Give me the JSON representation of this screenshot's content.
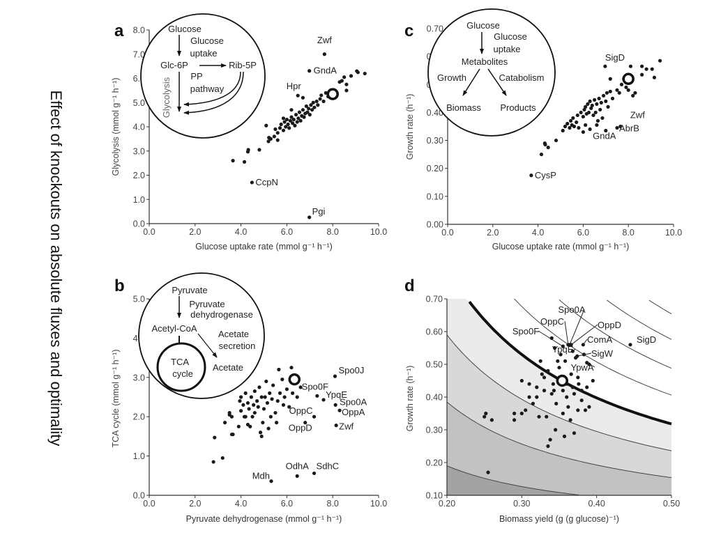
{
  "figure_title": "Effect of knockouts on absolute fluxes and optimality",
  "colors": {
    "points": "#1a1a1a",
    "axis": "#333333",
    "tick_labels": "#444444",
    "inset_stroke": "#111111"
  },
  "chart_data": [
    {
      "panel": "a",
      "type": "scatter",
      "xlabel": "Glucose uptake rate (mmol g⁻¹ h⁻¹)",
      "ylabel": "Glycolysis (mmol g⁻¹ h⁻¹)",
      "xlim": [
        0,
        10
      ],
      "ylim": [
        0,
        8
      ],
      "xticks": [
        "0.0",
        "2.0",
        "4.0",
        "6.0",
        "8.0",
        "10.0"
      ],
      "yticks": [
        "0.0",
        "1.0",
        "2.0",
        "3.0",
        "4.0",
        "5.0",
        "6.0",
        "7.0",
        "8.0"
      ],
      "wild_type": [
        8.0,
        5.35
      ],
      "labeled_points": [
        {
          "label": "Zwf",
          "x": 7.64,
          "y": 7.0
        },
        {
          "label": "GndA",
          "x": 6.98,
          "y": 6.31
        },
        {
          "label": "Hpr",
          "x": 6.48,
          "y": 5.29
        },
        {
          "label": "CcpN",
          "x": 4.48,
          "y": 1.7
        },
        {
          "label": "Pgi",
          "x": 6.98,
          "y": 0.26
        }
      ],
      "points": [
        [
          3.65,
          2.6
        ],
        [
          4.15,
          2.55
        ],
        [
          4.3,
          2.97
        ],
        [
          4.32,
          3.05
        ],
        [
          4.8,
          3.05
        ],
        [
          5.1,
          4.05
        ],
        [
          5.2,
          3.4
        ],
        [
          5.22,
          3.55
        ],
        [
          5.3,
          3.5
        ],
        [
          5.45,
          3.6
        ],
        [
          5.5,
          3.9
        ],
        [
          5.6,
          3.45
        ],
        [
          5.6,
          3.75
        ],
        [
          5.7,
          3.95
        ],
        [
          5.75,
          4.1
        ],
        [
          5.85,
          3.85
        ],
        [
          5.9,
          4.2
        ],
        [
          5.95,
          4.0
        ],
        [
          6.0,
          4.3
        ],
        [
          6.05,
          4.1
        ],
        [
          6.1,
          3.95
        ],
        [
          6.15,
          4.25
        ],
        [
          6.2,
          4.4
        ],
        [
          6.25,
          4.15
        ],
        [
          6.3,
          4.3
        ],
        [
          6.35,
          4.05
        ],
        [
          6.4,
          4.5
        ],
        [
          6.45,
          4.2
        ],
        [
          6.5,
          4.35
        ],
        [
          6.55,
          4.6
        ],
        [
          6.6,
          4.25
        ],
        [
          6.65,
          4.45
        ],
        [
          6.7,
          4.7
        ],
        [
          6.75,
          4.4
        ],
        [
          6.8,
          4.55
        ],
        [
          6.85,
          4.85
        ],
        [
          6.9,
          4.6
        ],
        [
          6.95,
          4.75
        ],
        [
          7.0,
          4.5
        ],
        [
          7.05,
          4.9
        ],
        [
          7.1,
          4.7
        ],
        [
          7.15,
          5.0
        ],
        [
          7.2,
          4.8
        ],
        [
          7.3,
          5.05
        ],
        [
          7.35,
          4.9
        ],
        [
          7.45,
          5.15
        ],
        [
          7.5,
          5.3
        ],
        [
          7.6,
          5.05
        ],
        [
          7.7,
          5.4
        ],
        [
          7.8,
          5.25
        ],
        [
          7.9,
          5.5
        ],
        [
          8.3,
          5.85
        ],
        [
          8.4,
          5.9
        ],
        [
          8.6,
          5.75
        ],
        [
          8.6,
          5.5
        ],
        [
          8.5,
          6.05
        ],
        [
          8.8,
          6.1
        ],
        [
          9.05,
          6.3
        ],
        [
          9.1,
          6.25
        ],
        [
          9.4,
          6.2
        ],
        [
          6.7,
          5.2
        ],
        [
          6.2,
          4.7
        ],
        [
          5.85,
          4.35
        ]
      ],
      "inset": [
        "Glucose",
        "Glucose",
        "uptake",
        "Glc-6P",
        "Rib-5P",
        "PP",
        "pathway",
        "Glycolysis"
      ]
    },
    {
      "panel": "c",
      "type": "scatter",
      "xlabel": "Glucose uptake rate (mmol g⁻¹ h⁻¹)",
      "ylabel": "Growth rate (h⁻¹)",
      "xlim": [
        0,
        10
      ],
      "ylim": [
        0,
        0.7
      ],
      "xticks": [
        "0.0",
        "2.0",
        "4.0",
        "6.0",
        "8.0",
        "10.0"
      ],
      "yticks": [
        "0.00",
        "0.10",
        "0.20",
        "0.30",
        "0.40",
        "0.50",
        "0.60",
        "0.70"
      ],
      "wild_type": [
        8.0,
        0.52
      ],
      "labeled_points": [
        {
          "label": "SigD",
          "x": 6.97,
          "y": 0.565
        },
        {
          "label": "Zwf",
          "x": 7.65,
          "y": 0.35
        },
        {
          "label": "AbrB",
          "x": 7.5,
          "y": 0.345
        },
        {
          "label": "GndA",
          "x": 7.0,
          "y": 0.335
        },
        {
          "label": "CysP",
          "x": 3.7,
          "y": 0.175
        }
      ],
      "points": [
        [
          4.15,
          0.25
        ],
        [
          4.3,
          0.29
        ],
        [
          4.32,
          0.285
        ],
        [
          4.45,
          0.275
        ],
        [
          4.8,
          0.3
        ],
        [
          5.1,
          0.335
        ],
        [
          5.2,
          0.35
        ],
        [
          5.3,
          0.36
        ],
        [
          5.4,
          0.345
        ],
        [
          5.45,
          0.37
        ],
        [
          5.5,
          0.355
        ],
        [
          5.55,
          0.38
        ],
        [
          5.6,
          0.35
        ],
        [
          5.7,
          0.365
        ],
        [
          5.75,
          0.39
        ],
        [
          5.8,
          0.345
        ],
        [
          5.9,
          0.4
        ],
        [
          6.0,
          0.385
        ],
        [
          6.05,
          0.41
        ],
        [
          6.1,
          0.42
        ],
        [
          6.15,
          0.395
        ],
        [
          6.2,
          0.43
        ],
        [
          6.25,
          0.4
        ],
        [
          6.3,
          0.44
        ],
        [
          6.35,
          0.415
        ],
        [
          6.4,
          0.425
        ],
        [
          6.45,
          0.39
        ],
        [
          6.5,
          0.445
        ],
        [
          6.55,
          0.4
        ],
        [
          6.6,
          0.43
        ],
        [
          6.65,
          0.37
        ],
        [
          6.7,
          0.45
        ],
        [
          6.75,
          0.41
        ],
        [
          6.8,
          0.435
        ],
        [
          6.85,
          0.38
        ],
        [
          6.9,
          0.46
        ],
        [
          7.0,
          0.44
        ],
        [
          7.05,
          0.47
        ],
        [
          7.1,
          0.42
        ],
        [
          7.2,
          0.475
        ],
        [
          7.3,
          0.45
        ],
        [
          7.5,
          0.48
        ],
        [
          7.6,
          0.47
        ],
        [
          7.7,
          0.5
        ],
        [
          7.8,
          0.52
        ],
        [
          7.9,
          0.49
        ],
        [
          8.0,
          0.48
        ],
        [
          8.2,
          0.46
        ],
        [
          8.3,
          0.47
        ],
        [
          7.2,
          0.52
        ],
        [
          8.1,
          0.565
        ],
        [
          8.6,
          0.565
        ],
        [
          8.8,
          0.555
        ],
        [
          9.05,
          0.555
        ],
        [
          9.4,
          0.585
        ],
        [
          8.6,
          0.535
        ],
        [
          9.15,
          0.525
        ],
        [
          6.3,
          0.34
        ],
        [
          6.1,
          0.355
        ],
        [
          6.6,
          0.355
        ],
        [
          6.0,
          0.33
        ]
      ],
      "inset": [
        "Glucose",
        "Glucose",
        "uptake",
        "Metabolites",
        "Growth",
        "Catabolism",
        "Biomass",
        "Products"
      ]
    },
    {
      "panel": "b",
      "type": "scatter",
      "xlabel": "Pyruvate dehydrogenase (mmol g⁻¹ h⁻¹)",
      "ylabel": "TCA cycle (mmol g⁻¹ h⁻¹)",
      "xlim": [
        0,
        10
      ],
      "ylim": [
        0,
        5
      ],
      "xticks": [
        "0.0",
        "2.0",
        "4.0",
        "6.0",
        "8.0",
        "10.0"
      ],
      "yticks": [
        "0.0",
        "1.0",
        "2.0",
        "3.0",
        "4.0",
        "5.0"
      ],
      "wild_type": [
        6.33,
        2.95
      ],
      "labeled_points": [
        {
          "label": "Spo0J",
          "x": 8.1,
          "y": 3.03
        },
        {
          "label": "Spo0F",
          "x": 7.32,
          "y": 2.53
        },
        {
          "label": "YpqE",
          "x": 7.6,
          "y": 2.43
        },
        {
          "label": "Spo0A",
          "x": 8.12,
          "y": 2.3
        },
        {
          "label": "OppA",
          "x": 8.3,
          "y": 2.16
        },
        {
          "label": "OppC",
          "x": 7.19,
          "y": 2.0
        },
        {
          "label": "OppD",
          "x": 6.8,
          "y": 1.85
        },
        {
          "label": "Zwf",
          "x": 8.15,
          "y": 1.78
        },
        {
          "label": "Mdh",
          "x": 5.32,
          "y": 0.36
        },
        {
          "label": "OdhA",
          "x": 6.45,
          "y": 0.49
        },
        {
          "label": "SdhC",
          "x": 7.19,
          "y": 0.56
        }
      ],
      "points": [
        [
          2.8,
          0.85
        ],
        [
          3.2,
          0.95
        ],
        [
          2.85,
          1.47
        ],
        [
          3.3,
          1.85
        ],
        [
          3.5,
          2.1
        ],
        [
          3.6,
          2.0
        ],
        [
          3.6,
          1.55
        ],
        [
          3.65,
          1.55
        ],
        [
          3.5,
          2.05
        ],
        [
          3.9,
          1.75
        ],
        [
          4.0,
          2.15
        ],
        [
          4.0,
          2.5
        ],
        [
          4.1,
          2.3
        ],
        [
          4.2,
          2.0
        ],
        [
          4.2,
          2.6
        ],
        [
          4.3,
          1.8
        ],
        [
          4.3,
          2.35
        ],
        [
          4.35,
          2.2
        ],
        [
          4.4,
          1.75
        ],
        [
          4.45,
          2.5
        ],
        [
          4.5,
          2.0
        ],
        [
          4.55,
          2.3
        ],
        [
          4.6,
          2.65
        ],
        [
          4.6,
          2.1
        ],
        [
          4.7,
          2.4
        ],
        [
          4.75,
          2.25
        ],
        [
          4.8,
          2.75
        ],
        [
          4.85,
          1.6
        ],
        [
          4.9,
          1.5
        ],
        [
          4.9,
          2.5
        ],
        [
          4.95,
          1.85
        ],
        [
          5.0,
          2.2
        ],
        [
          5.05,
          2.5
        ],
        [
          5.1,
          2.9
        ],
        [
          5.15,
          2.35
        ],
        [
          5.2,
          1.7
        ],
        [
          5.25,
          2.6
        ],
        [
          5.3,
          2.0
        ],
        [
          5.35,
          2.45
        ],
        [
          5.4,
          2.8
        ],
        [
          5.5,
          2.1
        ],
        [
          5.55,
          1.85
        ],
        [
          5.6,
          2.4
        ],
        [
          5.65,
          3.2
        ],
        [
          5.7,
          2.6
        ],
        [
          5.8,
          2.95
        ],
        [
          5.85,
          2.3
        ],
        [
          5.9,
          2.5
        ],
        [
          6.0,
          2.7
        ],
        [
          6.1,
          2.25
        ],
        [
          6.2,
          3.25
        ],
        [
          6.25,
          2.6
        ],
        [
          6.45,
          2.5
        ],
        [
          6.6,
          2.75
        ],
        [
          4.15,
          2.0
        ],
        [
          3.95,
          2.4
        ]
      ],
      "inset": [
        "Pyruvate",
        "Pyruvate",
        "dehydrogenase",
        "Acetyl-CoA",
        "Acetate",
        "secretion",
        "TCA",
        "cycle",
        "Acetate"
      ]
    },
    {
      "panel": "d",
      "type": "scatter",
      "xlabel": "Biomass yield (g (g glucose)⁻¹)",
      "ylabel": "Growth rate (h⁻¹)",
      "xlim": [
        0.2,
        0.5
      ],
      "ylim": [
        0.1,
        0.7
      ],
      "xticks": [
        "0.20",
        "0.30",
        "0.40",
        "0.50"
      ],
      "yticks": [
        "0.10",
        "0.20",
        "0.30",
        "0.40",
        "0.50",
        "0.60",
        "0.70"
      ],
      "wild_type": [
        0.354,
        0.45
      ],
      "contour_levels_growth_x_yield": [
        0.038,
        0.077,
        0.118,
        0.159,
        0.203,
        0.244,
        0.288,
        0.327
      ],
      "highlighted_contour": 0.159,
      "shading_colors": [
        "#a3a3a3",
        "#c2c2c2",
        "#d8d8d8",
        "#ebebeb"
      ],
      "labeled_points": [
        {
          "label": "Spo0A",
          "x": 0.364,
          "y": 0.56
        },
        {
          "label": "OppC",
          "x": 0.362,
          "y": 0.56
        },
        {
          "label": "OppD",
          "x": 0.366,
          "y": 0.56
        },
        {
          "label": "Spo0F",
          "x": 0.355,
          "y": 0.555
        },
        {
          "label": "ComA",
          "x": 0.382,
          "y": 0.56
        },
        {
          "label": "SigD",
          "x": 0.445,
          "y": 0.56
        },
        {
          "label": "YpqE",
          "x": 0.368,
          "y": 0.54
        },
        {
          "label": "SigW",
          "x": 0.374,
          "y": 0.525
        },
        {
          "label": "YpwA",
          "x": 0.387,
          "y": 0.505
        }
      ],
      "points": [
        [
          0.25,
          0.34
        ],
        [
          0.252,
          0.35
        ],
        [
          0.26,
          0.33
        ],
        [
          0.255,
          0.17
        ],
        [
          0.29,
          0.35
        ],
        [
          0.29,
          0.33
        ],
        [
          0.3,
          0.35
        ],
        [
          0.3,
          0.45
        ],
        [
          0.305,
          0.36
        ],
        [
          0.31,
          0.4
        ],
        [
          0.31,
          0.44
        ],
        [
          0.315,
          0.38
        ],
        [
          0.32,
          0.43
        ],
        [
          0.32,
          0.4
        ],
        [
          0.323,
          0.34
        ],
        [
          0.325,
          0.51
        ],
        [
          0.33,
          0.42
        ],
        [
          0.33,
          0.46
        ],
        [
          0.333,
          0.34
        ],
        [
          0.335,
          0.48
        ],
        [
          0.335,
          0.25
        ],
        [
          0.338,
          0.27
        ],
        [
          0.34,
          0.41
        ],
        [
          0.34,
          0.58
        ],
        [
          0.342,
          0.44
        ],
        [
          0.344,
          0.55
        ],
        [
          0.345,
          0.3
        ],
        [
          0.346,
          0.38
        ],
        [
          0.35,
          0.46
        ],
        [
          0.35,
          0.49
        ],
        [
          0.352,
          0.53
        ],
        [
          0.355,
          0.42
        ],
        [
          0.355,
          0.35
        ],
        [
          0.357,
          0.28
        ],
        [
          0.36,
          0.4
        ],
        [
          0.36,
          0.44
        ],
        [
          0.362,
          0.37
        ],
        [
          0.365,
          0.33
        ],
        [
          0.366,
          0.47
        ],
        [
          0.37,
          0.29
        ],
        [
          0.37,
          0.41
        ],
        [
          0.372,
          0.52
        ],
        [
          0.375,
          0.36
        ],
        [
          0.376,
          0.44
        ],
        [
          0.38,
          0.39
        ],
        [
          0.38,
          0.42
        ],
        [
          0.383,
          0.53
        ],
        [
          0.385,
          0.36
        ],
        [
          0.387,
          0.43
        ],
        [
          0.39,
          0.37
        ],
        [
          0.39,
          0.5
        ],
        [
          0.395,
          0.45
        ],
        [
          0.348,
          0.51
        ],
        [
          0.358,
          0.51
        ],
        [
          0.327,
          0.47
        ],
        [
          0.343,
          0.42
        ],
        [
          0.368,
          0.43
        ],
        [
          0.375,
          0.46
        ]
      ]
    }
  ]
}
